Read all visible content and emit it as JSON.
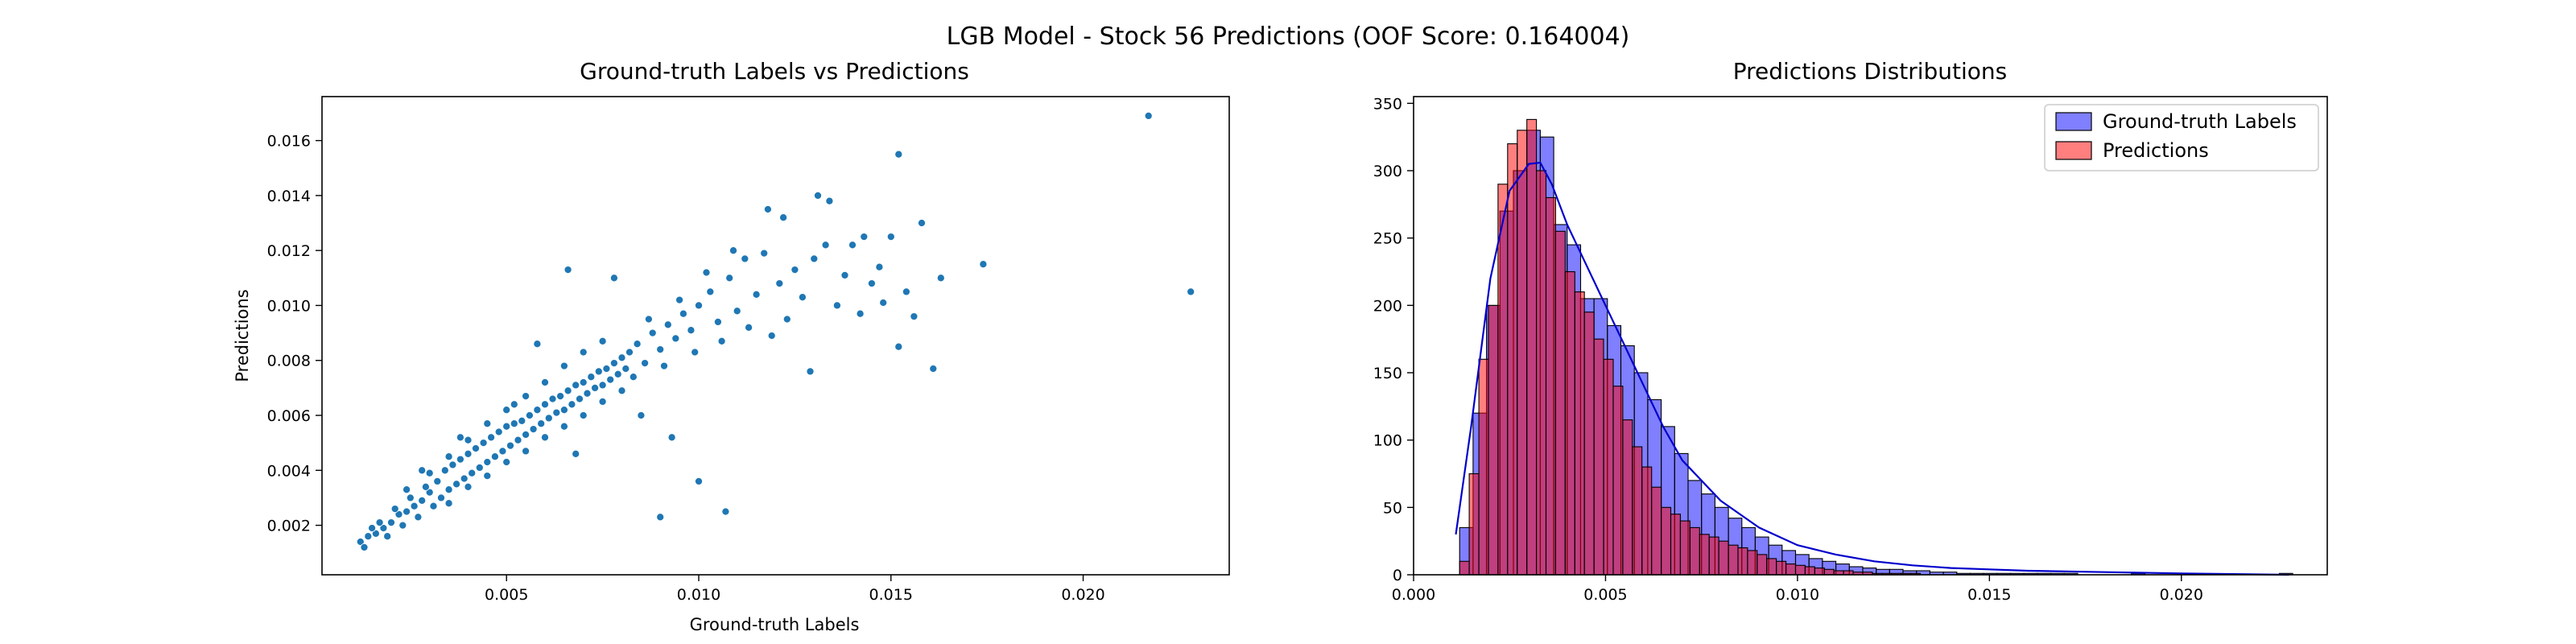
{
  "figure": {
    "title": "LGB Model - Stock 56 Predictions (OOF Score: 0.164004)"
  },
  "chart_data": [
    {
      "type": "scatter",
      "title": "Ground-truth Labels vs Predictions",
      "xlabel": "Ground-truth Labels",
      "ylabel": "Predictions",
      "xlim": [
        0.0002,
        0.0238
      ],
      "ylim": [
        0.0002,
        0.0176
      ],
      "xticks": [
        0.005,
        0.01,
        0.015,
        0.02
      ],
      "yticks": [
        0.002,
        0.004,
        0.006,
        0.008,
        0.01,
        0.012,
        0.014,
        0.016
      ],
      "xtick_labels": [
        "0.005",
        "0.010",
        "0.015",
        "0.020"
      ],
      "ytick_labels": [
        "0.002",
        "0.004",
        "0.006",
        "0.008",
        "0.010",
        "0.012",
        "0.014",
        "0.016"
      ],
      "grid": false,
      "color": "#1f77b4",
      "points": [
        [
          0.0012,
          0.0014
        ],
        [
          0.0014,
          0.0016
        ],
        [
          0.0016,
          0.0017
        ],
        [
          0.0018,
          0.0019
        ],
        [
          0.002,
          0.0021
        ],
        [
          0.0022,
          0.0024
        ],
        [
          0.0024,
          0.0025
        ],
        [
          0.0026,
          0.0027
        ],
        [
          0.0028,
          0.0029
        ],
        [
          0.003,
          0.0032
        ],
        [
          0.0013,
          0.0012
        ],
        [
          0.0015,
          0.0019
        ],
        [
          0.0017,
          0.0021
        ],
        [
          0.0019,
          0.0016
        ],
        [
          0.0021,
          0.0026
        ],
        [
          0.0023,
          0.002
        ],
        [
          0.0025,
          0.003
        ],
        [
          0.0027,
          0.0023
        ],
        [
          0.0029,
          0.0034
        ],
        [
          0.0031,
          0.0027
        ],
        [
          0.0032,
          0.0036
        ],
        [
          0.0033,
          0.003
        ],
        [
          0.0034,
          0.004
        ],
        [
          0.0035,
          0.0033
        ],
        [
          0.0036,
          0.0042
        ],
        [
          0.0037,
          0.0035
        ],
        [
          0.0038,
          0.0044
        ],
        [
          0.0039,
          0.0037
        ],
        [
          0.004,
          0.0046
        ],
        [
          0.0041,
          0.0039
        ],
        [
          0.0042,
          0.0048
        ],
        [
          0.0043,
          0.0041
        ],
        [
          0.0044,
          0.005
        ],
        [
          0.0045,
          0.0043
        ],
        [
          0.0046,
          0.0052
        ],
        [
          0.0047,
          0.0045
        ],
        [
          0.0048,
          0.0054
        ],
        [
          0.0049,
          0.0047
        ],
        [
          0.005,
          0.0056
        ],
        [
          0.0051,
          0.0049
        ],
        [
          0.0052,
          0.0057
        ],
        [
          0.0053,
          0.0051
        ],
        [
          0.0054,
          0.0058
        ],
        [
          0.0055,
          0.0053
        ],
        [
          0.0056,
          0.006
        ],
        [
          0.0057,
          0.0055
        ],
        [
          0.0058,
          0.0062
        ],
        [
          0.0059,
          0.0057
        ],
        [
          0.006,
          0.0064
        ],
        [
          0.0061,
          0.0059
        ],
        [
          0.0062,
          0.0066
        ],
        [
          0.0063,
          0.0061
        ],
        [
          0.0064,
          0.0067
        ],
        [
          0.0065,
          0.0062
        ],
        [
          0.0066,
          0.0069
        ],
        [
          0.0067,
          0.0064
        ],
        [
          0.0068,
          0.0071
        ],
        [
          0.0069,
          0.0066
        ],
        [
          0.007,
          0.0072
        ],
        [
          0.0071,
          0.0068
        ],
        [
          0.0072,
          0.0074
        ],
        [
          0.0073,
          0.007
        ],
        [
          0.0074,
          0.0076
        ],
        [
          0.0075,
          0.0071
        ],
        [
          0.0076,
          0.0077
        ],
        [
          0.0077,
          0.0073
        ],
        [
          0.0078,
          0.0079
        ],
        [
          0.0079,
          0.0075
        ],
        [
          0.008,
          0.0081
        ],
        [
          0.0081,
          0.0077
        ],
        [
          0.0035,
          0.0028
        ],
        [
          0.004,
          0.0034
        ],
        [
          0.0045,
          0.0038
        ],
        [
          0.005,
          0.0043
        ],
        [
          0.0055,
          0.0047
        ],
        [
          0.006,
          0.0052
        ],
        [
          0.0065,
          0.0056
        ],
        [
          0.007,
          0.006
        ],
        [
          0.0075,
          0.0065
        ],
        [
          0.008,
          0.0069
        ],
        [
          0.003,
          0.0039
        ],
        [
          0.0035,
          0.0045
        ],
        [
          0.004,
          0.0051
        ],
        [
          0.0045,
          0.0057
        ],
        [
          0.005,
          0.0062
        ],
        [
          0.0055,
          0.0067
        ],
        [
          0.006,
          0.0072
        ],
        [
          0.0065,
          0.0078
        ],
        [
          0.007,
          0.0083
        ],
        [
          0.0075,
          0.0087
        ],
        [
          0.0082,
          0.0083
        ],
        [
          0.0084,
          0.0086
        ],
        [
          0.0086,
          0.0079
        ],
        [
          0.0088,
          0.009
        ],
        [
          0.009,
          0.0084
        ],
        [
          0.0092,
          0.0093
        ],
        [
          0.0094,
          0.0088
        ],
        [
          0.0096,
          0.0097
        ],
        [
          0.0098,
          0.0091
        ],
        [
          0.01,
          0.01
        ],
        [
          0.0083,
          0.0074
        ],
        [
          0.0087,
          0.0095
        ],
        [
          0.0091,
          0.0078
        ],
        [
          0.0095,
          0.0102
        ],
        [
          0.0099,
          0.0083
        ],
        [
          0.0103,
          0.0105
        ],
        [
          0.0105,
          0.0094
        ],
        [
          0.0108,
          0.011
        ],
        [
          0.011,
          0.0098
        ],
        [
          0.0112,
          0.0117
        ],
        [
          0.0102,
          0.0112
        ],
        [
          0.0106,
          0.0087
        ],
        [
          0.0109,
          0.012
        ],
        [
          0.0113,
          0.0092
        ],
        [
          0.0115,
          0.0104
        ],
        [
          0.0117,
          0.0119
        ],
        [
          0.0119,
          0.0089
        ],
        [
          0.0121,
          0.0108
        ],
        [
          0.0123,
          0.0095
        ],
        [
          0.0125,
          0.0113
        ],
        [
          0.0118,
          0.0135
        ],
        [
          0.0122,
          0.0132
        ],
        [
          0.0127,
          0.0103
        ],
        [
          0.013,
          0.0117
        ],
        [
          0.0131,
          0.014
        ],
        [
          0.0133,
          0.0122
        ],
        [
          0.0134,
          0.0138
        ],
        [
          0.0136,
          0.01
        ],
        [
          0.0138,
          0.0111
        ],
        [
          0.014,
          0.0122
        ],
        [
          0.0142,
          0.0097
        ],
        [
          0.0145,
          0.0108
        ],
        [
          0.0147,
          0.0114
        ],
        [
          0.0148,
          0.0101
        ],
        [
          0.015,
          0.0125
        ],
        [
          0.0152,
          0.0085
        ],
        [
          0.0154,
          0.0105
        ],
        [
          0.0156,
          0.0096
        ],
        [
          0.0152,
          0.0155
        ],
        [
          0.0158,
          0.013
        ],
        [
          0.0163,
          0.011
        ],
        [
          0.0161,
          0.0077
        ],
        [
          0.0174,
          0.0115
        ],
        [
          0.0217,
          0.0169
        ],
        [
          0.0228,
          0.0105
        ],
        [
          0.01,
          0.0036
        ],
        [
          0.009,
          0.0023
        ],
        [
          0.0107,
          0.0025
        ],
        [
          0.0129,
          0.0076
        ],
        [
          0.0143,
          0.0125
        ],
        [
          0.0066,
          0.0113
        ],
        [
          0.0058,
          0.0086
        ],
        [
          0.0078,
          0.011
        ],
        [
          0.0052,
          0.0064
        ],
        [
          0.0068,
          0.0046
        ],
        [
          0.0085,
          0.006
        ],
        [
          0.0093,
          0.0052
        ],
        [
          0.0038,
          0.0052
        ],
        [
          0.0028,
          0.004
        ],
        [
          0.0024,
          0.0033
        ]
      ]
    },
    {
      "type": "histogram",
      "title": "Predictions Distributions",
      "xlabel": "",
      "ylabel": "",
      "xlim": [
        0.0,
        0.0238
      ],
      "ylim": [
        0,
        355
      ],
      "xticks": [
        0.0,
        0.005,
        0.01,
        0.015,
        0.02
      ],
      "yticks": [
        0,
        50,
        100,
        150,
        200,
        250,
        300,
        350
      ],
      "xtick_labels": [
        "0.000",
        "0.005",
        "0.010",
        "0.015",
        "0.020"
      ],
      "ytick_labels": [
        "0",
        "50",
        "100",
        "150",
        "200",
        "250",
        "300",
        "350"
      ],
      "grid": false,
      "legend_position": "top-right",
      "series": [
        {
          "name": "Ground-truth Labels",
          "color": "#0000ff",
          "bin_start": 0.0012,
          "bin_width": 0.00035,
          "counts": [
            35,
            120,
            200,
            270,
            300,
            330,
            325,
            260,
            245,
            205,
            205,
            185,
            170,
            150,
            130,
            110,
            90,
            70,
            60,
            50,
            42,
            35,
            28,
            22,
            18,
            15,
            12,
            10,
            8,
            6,
            5,
            4,
            4,
            3,
            3,
            2,
            2,
            1,
            1,
            1,
            1,
            1,
            1,
            1,
            1,
            1,
            0,
            0,
            0,
            0,
            1,
            0,
            0,
            0,
            0,
            0,
            0,
            0,
            0,
            0,
            0,
            1
          ]
        },
        {
          "name": "Predictions",
          "color": "#ff0000",
          "bin_start": 0.0012,
          "bin_width": 0.00025,
          "counts": [
            10,
            75,
            160,
            200,
            290,
            320,
            330,
            338,
            300,
            280,
            255,
            225,
            210,
            195,
            175,
            160,
            140,
            115,
            95,
            80,
            65,
            50,
            45,
            40,
            35,
            30,
            28,
            25,
            22,
            20,
            18,
            15,
            12,
            10,
            8,
            7,
            6,
            5,
            4,
            3,
            3,
            2,
            2,
            1,
            1,
            1,
            1,
            1
          ]
        }
      ],
      "kde": {
        "color": "#0000cc",
        "x": [
          0.0011,
          0.0015,
          0.002,
          0.0025,
          0.003,
          0.0033,
          0.0036,
          0.004,
          0.0045,
          0.005,
          0.0055,
          0.006,
          0.0065,
          0.007,
          0.008,
          0.009,
          0.01,
          0.011,
          0.012,
          0.013,
          0.014,
          0.015,
          0.016,
          0.018,
          0.02,
          0.0228
        ],
        "y": [
          30,
          110,
          220,
          285,
          305,
          306,
          290,
          260,
          230,
          200,
          170,
          140,
          110,
          85,
          55,
          35,
          22,
          15,
          10,
          7,
          5,
          4,
          3,
          2,
          1,
          0
        ]
      }
    }
  ]
}
